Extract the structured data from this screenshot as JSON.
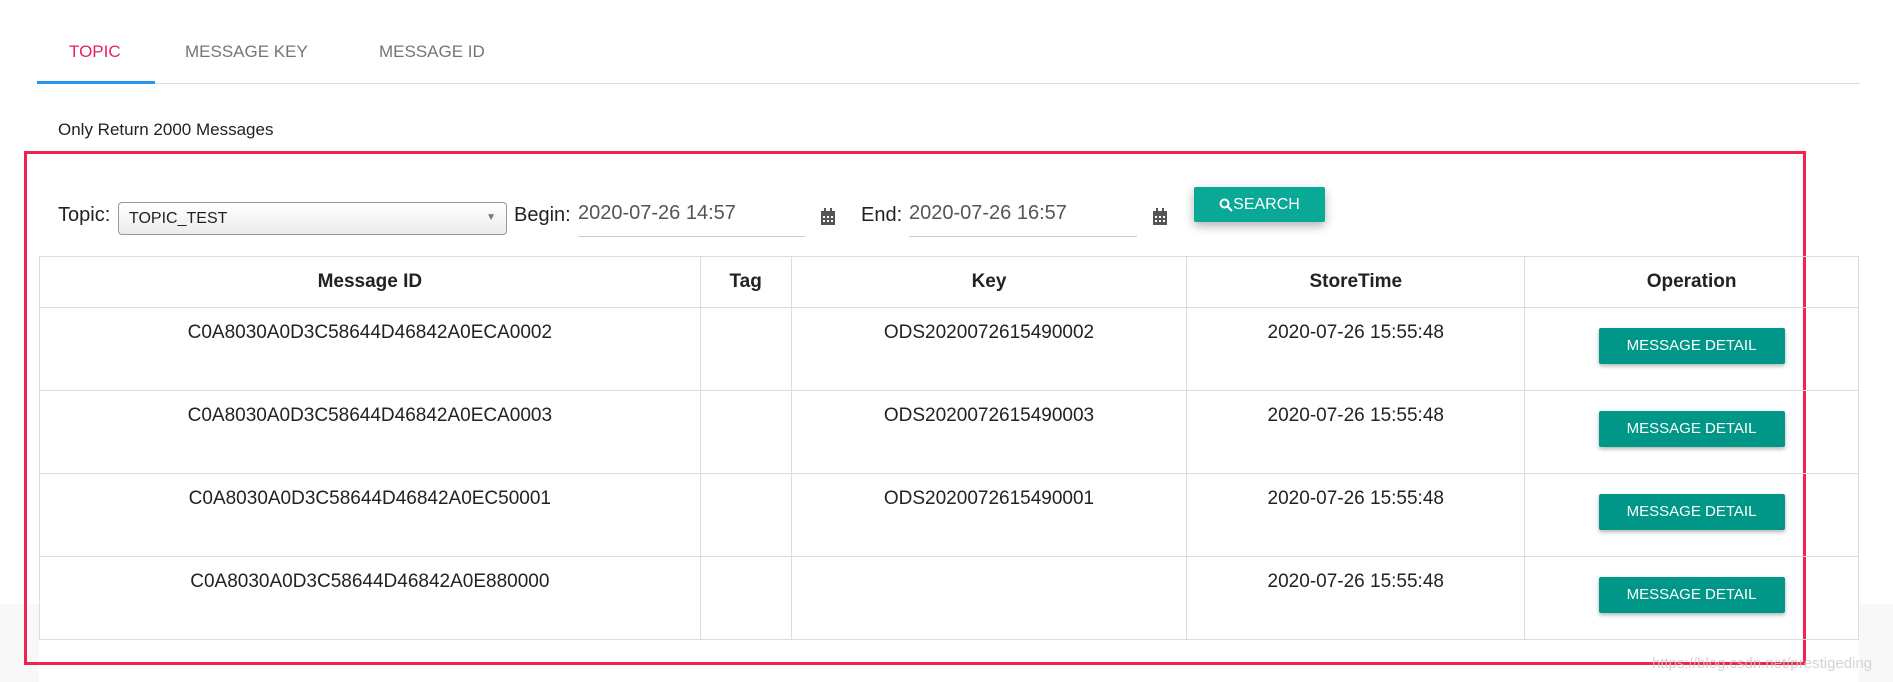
{
  "tabs": [
    {
      "label": "TOPIC",
      "active": true
    },
    {
      "label": "MESSAGE KEY"
    },
    {
      "label": "MESSAGE ID"
    }
  ],
  "note": "Only Return 2000 Messages",
  "filters": {
    "topic_label": "Topic:",
    "topic_value": "TOPIC_TEST",
    "begin_label": "Begin:",
    "begin_value": "2020-07-26 14:57",
    "end_label": "End:",
    "end_value": "2020-07-26 16:57",
    "search_label": "SEARCH"
  },
  "table": {
    "headers": [
      "Message ID",
      "Tag",
      "Key",
      "StoreTime",
      "Operation"
    ],
    "rows": [
      {
        "id": "C0A8030A0D3C58644D46842A0ECA0002",
        "tag": "",
        "key": "ODS2020072615490002",
        "time": "2020-07-26 15:55:48",
        "op": "MESSAGE DETAIL"
      },
      {
        "id": "C0A8030A0D3C58644D46842A0ECA0003",
        "tag": "",
        "key": "ODS2020072615490003",
        "time": "2020-07-26 15:55:48",
        "op": "MESSAGE DETAIL"
      },
      {
        "id": "C0A8030A0D3C58644D46842A0EC50001",
        "tag": "",
        "key": "ODS2020072615490001",
        "time": "2020-07-26 15:55:48",
        "op": "MESSAGE DETAIL"
      },
      {
        "id": "C0A8030A0D3C58644D46842A0E880000",
        "tag": "",
        "key": "",
        "time": "2020-07-26 15:55:48",
        "op": "MESSAGE DETAIL"
      }
    ]
  },
  "watermark": "https://blog.csdn.net/prestigeding",
  "colors": {
    "accent": "#e91e63",
    "ink": "#2196f3",
    "button": "#009688",
    "highlight": "#f0234f"
  }
}
